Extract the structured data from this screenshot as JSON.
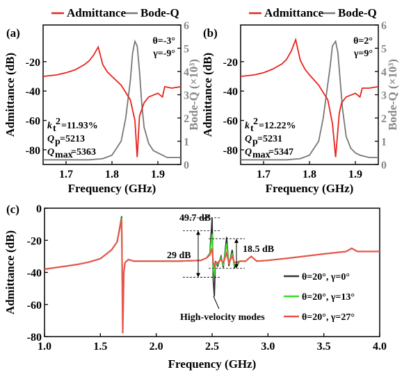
{
  "colors": {
    "admittance": "#e8221b",
    "bode_q": "#777777",
    "gamma0": "#333333",
    "gamma13": "#33dd22",
    "gamma27": "#e8554a",
    "right_axis": "#888888"
  },
  "chart_data": [
    {
      "panel": "(a)",
      "type": "line",
      "legend": [
        "Admittance",
        "Bode-Q"
      ],
      "angles": [
        "θ=-3°",
        "γ=-9°"
      ],
      "metrics": [
        "k",
        "t",
        "2",
        "=11.93%",
        "Q",
        "p",
        "=5213",
        "Q",
        "max",
        "=5363"
      ],
      "xlabel": "Frequency (GHz)",
      "ylabel": "Admittance (dB)",
      "y2label": "Bode-Q (×10³)",
      "xlim": [
        1.65,
        1.95
      ],
      "ylim": [
        -90,
        5
      ],
      "y2lim": [
        0,
        6
      ],
      "xticks": [
        "1.7",
        "1.8",
        "1.9"
      ],
      "yticks": [
        "-80",
        "-60",
        "-40",
        "-20"
      ],
      "y2ticks": [
        "0",
        "1",
        "2",
        "3",
        "4",
        "5",
        "6"
      ],
      "series": [
        {
          "name": "Admittance",
          "x": [
            1.65,
            1.68,
            1.7,
            1.72,
            1.74,
            1.75,
            1.76,
            1.77,
            1.78,
            1.79,
            1.8,
            1.82,
            1.84,
            1.85,
            1.855,
            1.86,
            1.87,
            1.88,
            1.9,
            1.91,
            1.915,
            1.93,
            1.95
          ],
          "y": [
            -30,
            -29,
            -27.5,
            -25.5,
            -22,
            -19.5,
            -15.5,
            -10,
            -22,
            -27,
            -30,
            -36,
            -46,
            -60,
            -85,
            -57,
            -48,
            -44,
            -41.5,
            -44,
            -37,
            -38,
            -37
          ]
        },
        {
          "name": "Bode-Q",
          "x": [
            1.65,
            1.7,
            1.75,
            1.78,
            1.8,
            1.82,
            1.83,
            1.84,
            1.845,
            1.85,
            1.855,
            1.86,
            1.865,
            1.87,
            1.88,
            1.89,
            1.9,
            1.91,
            1.92,
            1.93,
            1.95
          ],
          "y": [
            0.2,
            0.2,
            0.2,
            0.25,
            0.4,
            1.0,
            2.0,
            3.6,
            4.8,
            5.3,
            5.1,
            4.0,
            2.6,
            1.6,
            0.9,
            0.6,
            0.5,
            0.4,
            0.3,
            0.3,
            0.3
          ]
        }
      ]
    },
    {
      "panel": "(b)",
      "type": "line",
      "legend": [
        "Admittance",
        "Bode-Q"
      ],
      "angles": [
        "θ=2°",
        "γ=9°"
      ],
      "metrics": [
        "k",
        "t",
        "2",
        "=12.22%",
        "Q",
        "p",
        "=5231",
        "Q",
        "max",
        "=5347"
      ],
      "xlabel": "Frequency (GHz)",
      "ylabel": "Admittance (dB)",
      "y2label": "Bode-Q (×10³)",
      "xlim": [
        1.65,
        1.95
      ],
      "ylim": [
        -90,
        5
      ],
      "y2lim": [
        0,
        6
      ],
      "xticks": [
        "1.7",
        "1.8",
        "1.9"
      ],
      "yticks": [
        "-80",
        "-60",
        "-40",
        "-20"
      ],
      "y2ticks": [
        "0",
        "1",
        "2",
        "3",
        "4",
        "5",
        "6"
      ],
      "series": [
        {
          "name": "Admittance",
          "x": [
            1.65,
            1.68,
            1.7,
            1.72,
            1.74,
            1.75,
            1.76,
            1.77,
            1.78,
            1.79,
            1.8,
            1.82,
            1.84,
            1.85,
            1.857,
            1.865,
            1.87,
            1.88,
            1.9,
            1.91,
            1.915,
            1.93,
            1.95
          ],
          "y": [
            -30,
            -29,
            -27.5,
            -25,
            -21.5,
            -18.5,
            -13,
            -5,
            -19,
            -25,
            -29,
            -36,
            -46,
            -62,
            -85,
            -55,
            -48,
            -44,
            -41.5,
            -44,
            -38,
            -38,
            -37
          ]
        },
        {
          "name": "Bode-Q",
          "x": [
            1.65,
            1.7,
            1.75,
            1.78,
            1.8,
            1.82,
            1.83,
            1.845,
            1.85,
            1.857,
            1.862,
            1.867,
            1.872,
            1.88,
            1.89,
            1.9,
            1.91,
            1.92,
            1.93,
            1.95
          ],
          "y": [
            0.2,
            0.2,
            0.2,
            0.25,
            0.4,
            1.0,
            2.0,
            4.2,
            5.1,
            5.3,
            4.8,
            3.6,
            2.4,
            1.2,
            0.7,
            0.5,
            0.4,
            0.35,
            0.3,
            0.3
          ]
        }
      ]
    },
    {
      "panel": "(c)",
      "type": "line",
      "xlabel": "Frequency (GHz)",
      "ylabel": "Admittance (dB)",
      "xlim": [
        1.0,
        4.0
      ],
      "ylim": [
        -80,
        0
      ],
      "xticks": [
        "1.0",
        "1.5",
        "2.0",
        "2.5",
        "3.0",
        "3.5",
        "4.0"
      ],
      "yticks": [
        "0",
        "-20",
        "-40",
        "-60",
        "-80"
      ],
      "annotations": [
        "49.7 dB",
        "29 dB",
        "18.5 dB",
        "High-velocity modes"
      ],
      "series": [
        {
          "name": "θ=20°, γ=0°",
          "x": [
            1.0,
            1.2,
            1.3,
            1.4,
            1.5,
            1.6,
            1.65,
            1.69,
            1.7,
            1.71,
            1.72,
            1.75,
            1.8,
            1.9,
            2.0,
            2.2,
            2.4,
            2.45,
            2.48,
            2.5,
            2.51,
            2.52,
            2.53,
            2.55,
            2.58,
            2.6,
            2.63,
            2.65,
            2.68,
            2.7,
            2.75,
            2.8,
            2.85,
            2.9,
            3.0,
            3.2,
            3.5,
            3.7,
            3.75,
            3.8,
            4.0
          ],
          "y": [
            -38,
            -36,
            -35,
            -33.5,
            -31.5,
            -26,
            -21,
            -5,
            -68,
            -40,
            -34,
            -32,
            -33,
            -33,
            -33,
            -33,
            -32.5,
            -31,
            -28,
            -6,
            -45,
            -55,
            -33,
            -36,
            -30,
            -37,
            -18,
            -36,
            -26,
            -37,
            -33,
            -33,
            -30,
            -33,
            -32.5,
            -31,
            -28.5,
            -27,
            -25,
            -27,
            -27
          ]
        },
        {
          "name": "θ=20°, γ=13°",
          "x": [
            1.0,
            1.2,
            1.3,
            1.4,
            1.5,
            1.6,
            1.65,
            1.69,
            1.7,
            1.71,
            1.72,
            1.75,
            1.8,
            1.9,
            2.0,
            2.2,
            2.4,
            2.45,
            2.48,
            2.5,
            2.51,
            2.52,
            2.53,
            2.55,
            2.58,
            2.6,
            2.63,
            2.65,
            2.68,
            2.7,
            2.75,
            2.8,
            2.85,
            2.9,
            3.0,
            3.2,
            3.5,
            3.7,
            3.75,
            3.8,
            4.0
          ],
          "y": [
            -38,
            -36,
            -35,
            -33.5,
            -31.5,
            -26,
            -21,
            -6,
            -70,
            -40,
            -34,
            -32,
            -33,
            -33,
            -33,
            -33,
            -32.5,
            -31,
            -28,
            -16,
            -38,
            -42,
            -34,
            -35,
            -31,
            -36,
            -22,
            -35,
            -28,
            -36,
            -33,
            -33,
            -30,
            -33,
            -32.5,
            -31,
            -28.5,
            -27,
            -25,
            -27,
            -27
          ]
        },
        {
          "name": "θ=20°, γ=27°",
          "x": [
            1.0,
            1.2,
            1.3,
            1.4,
            1.5,
            1.6,
            1.65,
            1.69,
            1.7,
            1.71,
            1.72,
            1.75,
            1.8,
            1.9,
            2.0,
            2.2,
            2.4,
            2.45,
            2.48,
            2.5,
            2.51,
            2.52,
            2.53,
            2.55,
            2.58,
            2.6,
            2.63,
            2.65,
            2.68,
            2.7,
            2.75,
            2.8,
            2.85,
            2.9,
            3.0,
            3.2,
            3.5,
            3.7,
            3.75,
            3.8,
            4.0
          ],
          "y": [
            -38,
            -36,
            -35,
            -33.5,
            -31.5,
            -26,
            -21,
            -7,
            -78,
            -40,
            -34,
            -32,
            -33,
            -33,
            -33,
            -33,
            -32.5,
            -31,
            -29,
            -25,
            -34,
            -36,
            -34,
            -34,
            -32,
            -34,
            -28,
            -34,
            -30,
            -34,
            -33,
            -33,
            -30,
            -33,
            -32.5,
            -31,
            -28.5,
            -27,
            -25,
            -27,
            -27
          ]
        }
      ]
    }
  ]
}
